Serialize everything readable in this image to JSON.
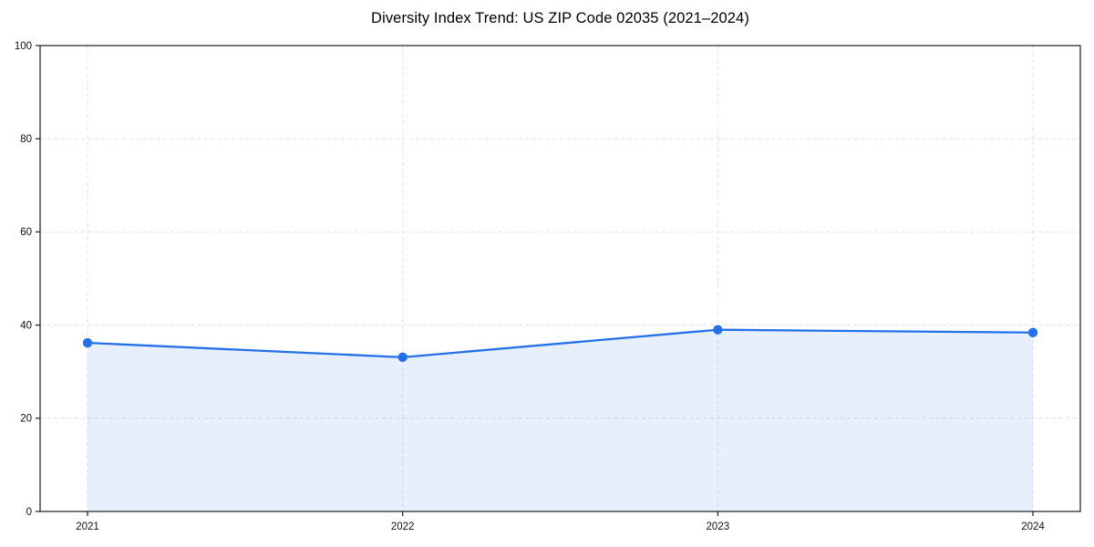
{
  "chart_data": {
    "type": "line",
    "subtype": "area-filled-line-with-markers",
    "title": "Diversity Index Trend: US ZIP Code 02035 (2021–2024)",
    "x": [
      "2021",
      "2022",
      "2023",
      "2024"
    ],
    "series": [
      {
        "name": "Diversity Index",
        "values": [
          36.2,
          33.1,
          39.0,
          38.4
        ]
      }
    ],
    "xlabel": "",
    "ylabel": "",
    "ylim": [
      0,
      100
    ],
    "yticks": [
      0,
      20,
      40,
      60,
      80,
      100
    ],
    "xtick_labels": [
      "2021",
      "2022",
      "2023",
      "2024"
    ],
    "grid": "on",
    "grid_style": "dashed",
    "legend_position": "none",
    "colors": {
      "line": "#2470e8",
      "marker": "#2470e8",
      "fill": "#2470e8",
      "fill_opacity": 0.11,
      "grid": "#e2e2e2",
      "spine": "#1c1c1c",
      "tick_text": "#111111",
      "background": "#ffffff"
    }
  }
}
